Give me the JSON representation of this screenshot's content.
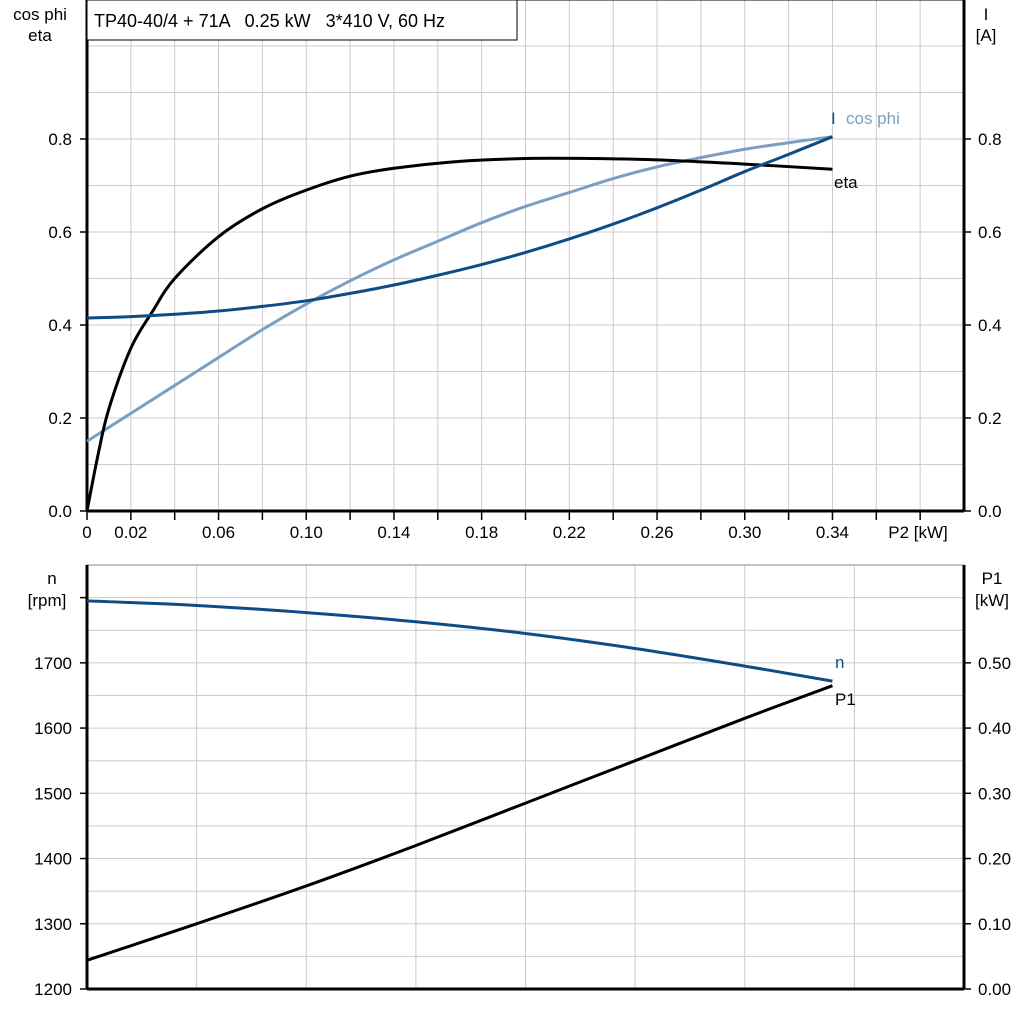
{
  "colors": {
    "eta": "#000000",
    "cos_phi": "#7a9fc2",
    "current": "#0f4c86",
    "speed": "#0f4c86",
    "p1": "#000000",
    "grid": "#cccccc"
  },
  "chart_data": [
    {
      "type": "line",
      "title": "TP40-40/4 + 71A   0.25 kW   3*410 V, 60 Hz",
      "xlabel": "P2 [kW]",
      "ylabel_left": [
        "cos phi",
        "eta"
      ],
      "ylabel_right": [
        "I",
        "[A]"
      ],
      "xlim": [
        0,
        0.4
      ],
      "ylim_left": [
        0,
        1.0
      ],
      "ylim_right": [
        0,
        1.0
      ],
      "x_tick_labels": [
        "0",
        "0.02",
        "0.06",
        "0.10",
        "0.14",
        "0.18",
        "0.22",
        "0.26",
        "0.30",
        "0.34"
      ],
      "y_tick_labels_left": [
        "0.0",
        "0.2",
        "0.4",
        "0.6",
        "0.8"
      ],
      "y_tick_labels_right": [
        "0.0",
        "0.2",
        "0.4",
        "0.6",
        "0.8"
      ],
      "grid": true,
      "series": [
        {
          "name": "eta",
          "axis": "left",
          "x": [
            0,
            0.005,
            0.01,
            0.02,
            0.03,
            0.04,
            0.06,
            0.08,
            0.1,
            0.12,
            0.14,
            0.17,
            0.2,
            0.23,
            0.26,
            0.3,
            0.34
          ],
          "y": [
            0,
            0.12,
            0.22,
            0.35,
            0.43,
            0.5,
            0.59,
            0.65,
            0.69,
            0.72,
            0.737,
            0.752,
            0.758,
            0.758,
            0.755,
            0.746,
            0.735
          ]
        },
        {
          "name": "cos phi",
          "axis": "left",
          "x": [
            0,
            0.02,
            0.04,
            0.06,
            0.08,
            0.1,
            0.12,
            0.14,
            0.16,
            0.18,
            0.2,
            0.22,
            0.24,
            0.26,
            0.28,
            0.3,
            0.32,
            0.34
          ],
          "y": [
            0.15,
            0.21,
            0.27,
            0.33,
            0.39,
            0.445,
            0.495,
            0.54,
            0.58,
            0.62,
            0.655,
            0.685,
            0.715,
            0.74,
            0.76,
            0.778,
            0.792,
            0.805
          ]
        },
        {
          "name": "I",
          "axis": "right",
          "x": [
            0,
            0.02,
            0.04,
            0.06,
            0.08,
            0.1,
            0.12,
            0.14,
            0.16,
            0.18,
            0.2,
            0.22,
            0.24,
            0.26,
            0.28,
            0.3,
            0.32,
            0.34
          ],
          "y": [
            0.415,
            0.418,
            0.423,
            0.43,
            0.44,
            0.452,
            0.468,
            0.486,
            0.507,
            0.53,
            0.556,
            0.585,
            0.617,
            0.652,
            0.69,
            0.73,
            0.767,
            0.805
          ]
        }
      ]
    },
    {
      "type": "line",
      "ylabel_left": [
        "n",
        "[rpm]"
      ],
      "ylabel_right": [
        "P1",
        "[kW]"
      ],
      "xlim": [
        0,
        0.4
      ],
      "ylim_left": [
        1200,
        1850
      ],
      "ylim_right": [
        0,
        0.65
      ],
      "y_tick_labels_left": [
        "1200",
        "1300",
        "1400",
        "1500",
        "1600",
        "1700"
      ],
      "y_tick_labels_right": [
        "0.00",
        "0.10",
        "0.20",
        "0.30",
        "0.40",
        "0.50"
      ],
      "grid": true,
      "series": [
        {
          "name": "n",
          "axis": "left",
          "x": [
            0,
            0.05,
            0.1,
            0.15,
            0.2,
            0.25,
            0.3,
            0.34
          ],
          "y": [
            1795,
            1788,
            1777,
            1763,
            1745,
            1722,
            1695,
            1672
          ]
        },
        {
          "name": "P1",
          "axis": "right",
          "x": [
            0,
            0.05,
            0.1,
            0.15,
            0.2,
            0.25,
            0.3,
            0.34
          ],
          "y": [
            0.044,
            0.1,
            0.158,
            0.22,
            0.285,
            0.35,
            0.415,
            0.465
          ]
        }
      ]
    }
  ]
}
